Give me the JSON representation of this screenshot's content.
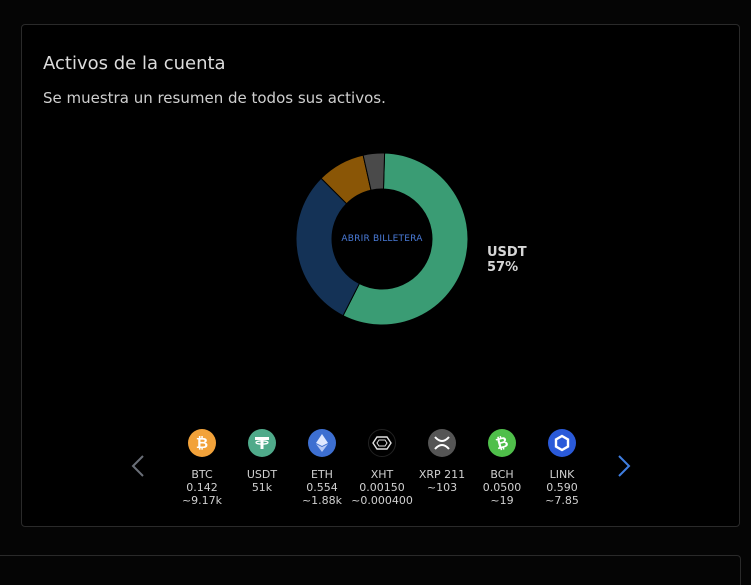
{
  "panel": {
    "title": "Activos de la cuenta",
    "subtitle": "Se muestra un resumen de todos sus activos."
  },
  "donut": {
    "center_label": "ABRIR BILLETERA",
    "highlight_label": "USDT",
    "highlight_percent": "57%",
    "segments": [
      {
        "name": "USDT",
        "fraction": 0.57,
        "color": "#3a9c74"
      },
      {
        "name": "ETH",
        "fraction": 0.3,
        "color": "#143256"
      },
      {
        "name": "BTC",
        "fraction": 0.09,
        "color": "#8a5606"
      },
      {
        "name": "other",
        "fraction": 0.04,
        "color": "#4a4a4a"
      }
    ]
  },
  "assets": [
    {
      "symbol": "BTC",
      "amount": "0.142",
      "value": "~9.17k",
      "icon": "bitcoin-icon",
      "color": "#f2a23a"
    },
    {
      "symbol": "USDT",
      "amount": "51k",
      "value": "",
      "icon": "tether-icon",
      "color": "#4faa8a"
    },
    {
      "symbol": "ETH",
      "amount": "0.554",
      "value": "~1.88k",
      "icon": "ethereum-icon",
      "color": "#3d6fd1"
    },
    {
      "symbol": "XHT",
      "amount": "0.00150",
      "value": "~0.000400",
      "icon": "hollaex-icon",
      "color": "#000000"
    },
    {
      "symbol": "XRP 211",
      "amount": "~103",
      "value": "",
      "icon": "xrp-icon",
      "color": "#555555"
    },
    {
      "symbol": "BCH",
      "amount": "0.0500",
      "value": "~19",
      "icon": "bitcoin-cash-icon",
      "color": "#4fbf4a"
    },
    {
      "symbol": "LINK",
      "amount": "0.590",
      "value": "~7.85",
      "icon": "chainlink-icon",
      "color": "#2a5ad9"
    }
  ],
  "nav": {
    "prev_icon": "chevron-left-icon",
    "next_icon": "chevron-right-icon"
  }
}
